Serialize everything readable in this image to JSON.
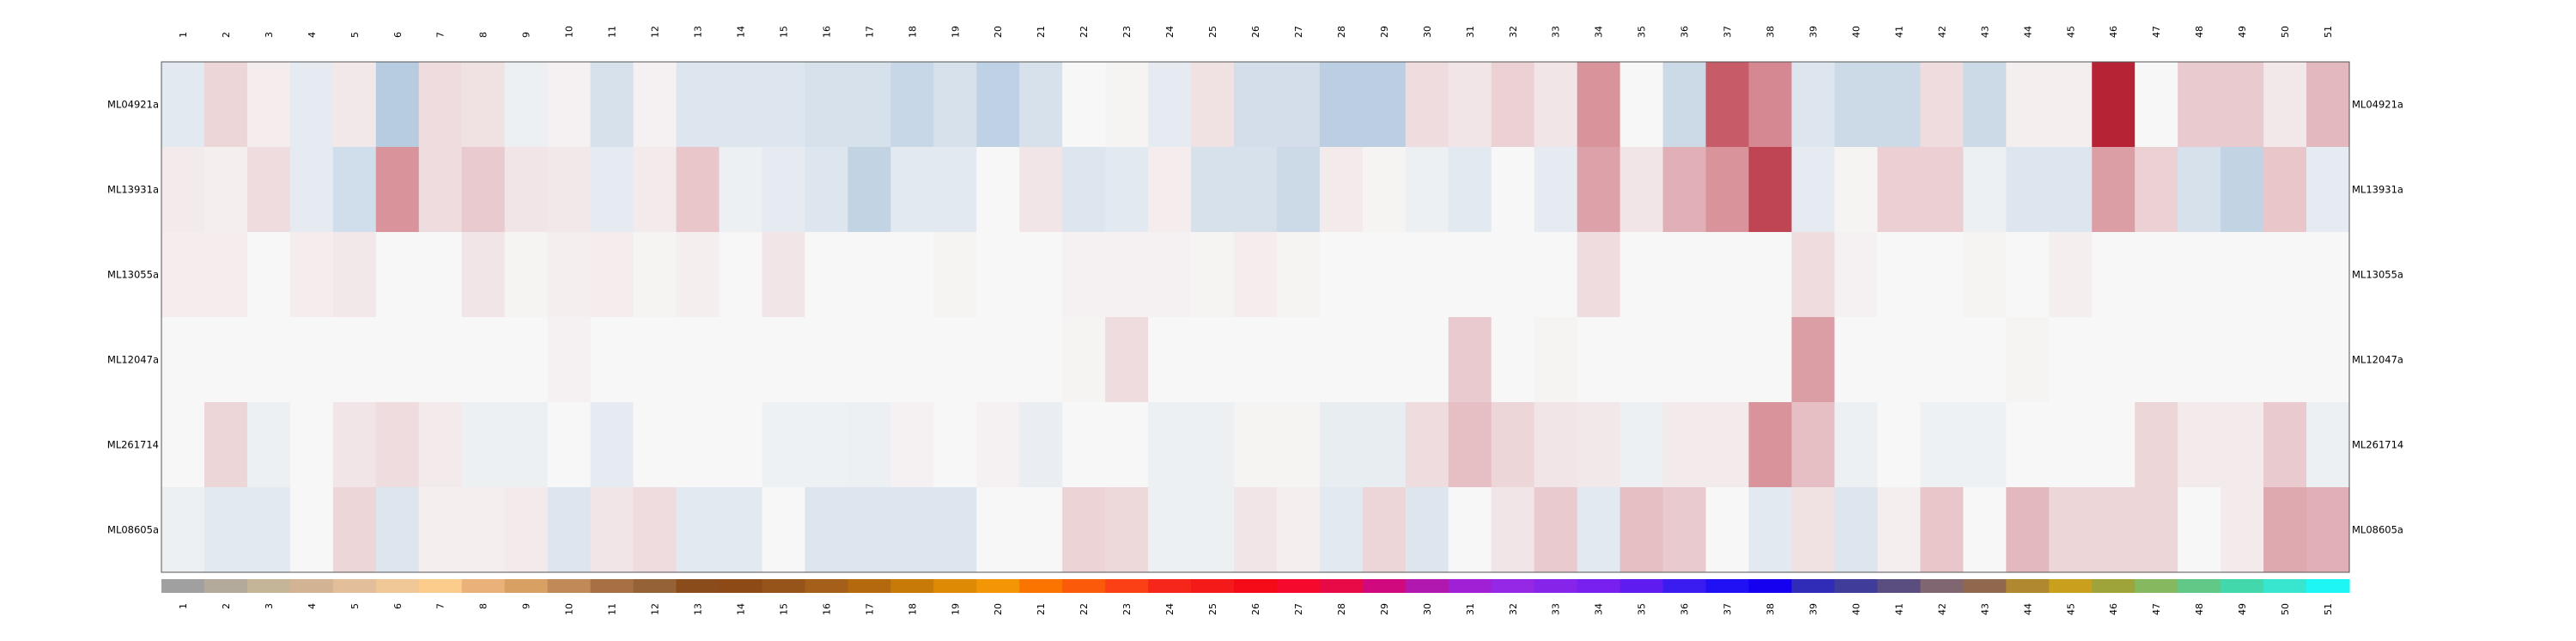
{
  "chart_data": {
    "type": "heatmap",
    "columns": [
      "1",
      "2",
      "3",
      "4",
      "5",
      "6",
      "7",
      "8",
      "9",
      "10",
      "11",
      "12",
      "13",
      "14",
      "15",
      "16",
      "17",
      "18",
      "19",
      "20",
      "21",
      "22",
      "23",
      "24",
      "25",
      "26",
      "27",
      "28",
      "29",
      "30",
      "31",
      "32",
      "33",
      "34",
      "35",
      "36",
      "37",
      "38",
      "39",
      "40",
      "41",
      "42",
      "43",
      "44",
      "45",
      "46",
      "47",
      "48",
      "49",
      "50",
      "51"
    ],
    "rows": [
      "ML04921a",
      "ML13931a",
      "ML13055a",
      "ML12047a",
      "ML261714",
      "ML08605a"
    ],
    "value_range": [
      -1,
      1
    ],
    "values": [
      [
        -0.1,
        0.15,
        0.05,
        -0.08,
        0.07,
        -0.3,
        0.12,
        0.1,
        -0.05,
        0.03,
        -0.15,
        0.03,
        -0.12,
        -0.12,
        -0.12,
        -0.15,
        -0.15,
        -0.22,
        -0.15,
        -0.26,
        -0.15,
        0.0,
        0.02,
        -0.08,
        0.1,
        -0.17,
        -0.17,
        -0.28,
        -0.28,
        0.12,
        0.08,
        0.17,
        0.08,
        0.45,
        0.0,
        -0.2,
        0.7,
        0.5,
        -0.12,
        -0.2,
        -0.2,
        0.12,
        -0.2,
        0.04,
        0.04,
        0.95,
        0.0,
        0.2,
        0.2,
        0.07,
        0.28
      ],
      [
        0.06,
        0.04,
        0.12,
        -0.08,
        -0.18,
        0.45,
        0.12,
        0.2,
        0.08,
        0.07,
        -0.08,
        0.06,
        0.22,
        -0.05,
        -0.08,
        -0.12,
        -0.25,
        -0.1,
        -0.1,
        0.0,
        0.08,
        -0.12,
        -0.1,
        0.05,
        -0.15,
        -0.15,
        -0.2,
        0.06,
        0.02,
        -0.05,
        -0.1,
        0.0,
        -0.08,
        0.38,
        0.08,
        0.32,
        0.45,
        0.8,
        -0.08,
        0.02,
        0.18,
        0.18,
        -0.05,
        -0.12,
        -0.12,
        0.4,
        0.17,
        -0.15,
        -0.25,
        0.22,
        -0.08
      ],
      [
        0.05,
        0.05,
        0.0,
        0.05,
        0.07,
        0.0,
        0.0,
        0.08,
        0.02,
        0.04,
        0.05,
        0.02,
        0.04,
        0.0,
        0.08,
        0.0,
        0.0,
        0.0,
        0.02,
        0.0,
        0.0,
        0.03,
        0.03,
        0.03,
        0.02,
        0.05,
        0.02,
        0.0,
        0.0,
        0.0,
        0.0,
        0.0,
        0.0,
        0.12,
        0.0,
        0.0,
        0.0,
        0.0,
        0.12,
        0.03,
        0.0,
        0.0,
        0.02,
        0.0,
        0.04,
        0.0,
        0.0,
        0.0,
        0.0,
        0.0,
        0.0
      ],
      [
        0.0,
        0.0,
        0.0,
        0.0,
        0.0,
        0.0,
        0.0,
        0.0,
        0.0,
        0.03,
        0.0,
        0.0,
        0.0,
        0.0,
        0.0,
        0.0,
        0.0,
        0.0,
        0.0,
        0.0,
        0.0,
        0.02,
        0.12,
        0.0,
        0.0,
        0.0,
        0.0,
        0.0,
        0.0,
        0.0,
        0.2,
        0.0,
        0.02,
        0.0,
        0.0,
        0.0,
        0.0,
        0.0,
        0.4,
        0.0,
        0.0,
        0.0,
        0.0,
        0.02,
        0.0,
        0.0,
        0.0,
        0.0,
        0.0,
        0.0,
        0.0
      ],
      [
        0.0,
        0.15,
        -0.05,
        0.0,
        0.08,
        0.12,
        0.06,
        -0.05,
        -0.05,
        0.0,
        -0.08,
        0.0,
        0.0,
        0.0,
        -0.04,
        -0.04,
        -0.05,
        0.03,
        0.0,
        0.03,
        -0.06,
        0.0,
        0.0,
        -0.05,
        -0.05,
        0.02,
        0.02,
        -0.07,
        -0.07,
        0.12,
        0.25,
        0.15,
        0.08,
        0.07,
        -0.05,
        0.06,
        0.06,
        0.45,
        0.25,
        -0.05,
        0.0,
        -0.04,
        -0.04,
        0.0,
        0.0,
        0.0,
        0.15,
        0.06,
        0.06,
        0.2,
        -0.05
      ],
      [
        -0.05,
        -0.1,
        -0.1,
        0.0,
        0.15,
        -0.12,
        0.04,
        0.04,
        0.06,
        -0.12,
        0.08,
        0.12,
        -0.1,
        -0.1,
        0.0,
        -0.12,
        -0.12,
        -0.12,
        -0.12,
        0.0,
        0.0,
        0.16,
        0.14,
        -0.05,
        -0.05,
        0.08,
        0.04,
        -0.1,
        0.15,
        -0.12,
        0.0,
        0.08,
        0.2,
        -0.1,
        0.25,
        0.2,
        0.0,
        -0.1,
        0.1,
        -0.12,
        0.04,
        0.22,
        0.0,
        0.28,
        0.15,
        0.15,
        0.15,
        0.0,
        0.06,
        0.35,
        0.32
      ]
    ],
    "column_colors": [
      "#a0a0a0",
      "#b4aa9c",
      "#c4b498",
      "#d2b494",
      "#e2be9a",
      "#f0c898",
      "#fccc8c",
      "#eab27a",
      "#d8a062",
      "#bf8a58",
      "#a86e44",
      "#946236",
      "#8a4c1a",
      "#8e4a16",
      "#96541a",
      "#a4601a",
      "#b4690e",
      "#c87a08",
      "#de8a04",
      "#f39606",
      "#fa7400",
      "#fa5a0a",
      "#fa4014",
      "#f7261a",
      "#f41a1a",
      "#f50a18",
      "#f50a2e",
      "#e80a46",
      "#d00a7e",
      "#b018ae",
      "#a020d6",
      "#9428e4",
      "#8624ea",
      "#7820f0",
      "#5e1cf0",
      "#3a1cf0",
      "#2010f4",
      "#1600f0",
      "#302cb8",
      "#403c9a",
      "#5a4e80",
      "#806670",
      "#90684e",
      "#b08830",
      "#c8a01e",
      "#9ea43a",
      "#86b860",
      "#62c888",
      "#42d8ac",
      "#38e6d0",
      "#1ef6f6"
    ],
    "colors": {
      "neutral": "#f7f7f7",
      "positive": "#b2182b",
      "negative": "#2166ac"
    }
  }
}
